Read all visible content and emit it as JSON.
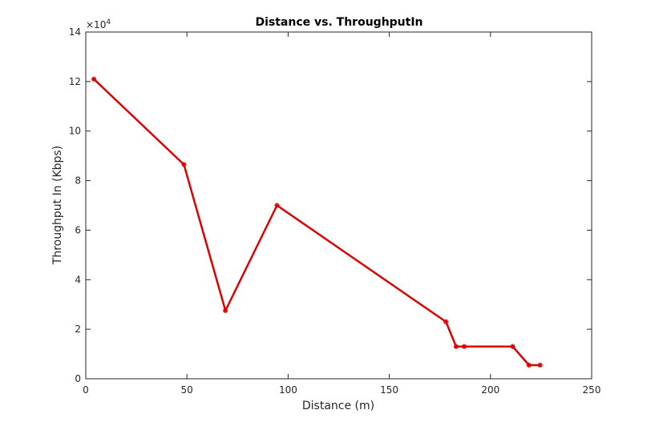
{
  "chart_data": {
    "type": "line",
    "title": "Distance vs. ThroughputIn",
    "xlabel": "Distance (m)",
    "ylabel": "Throughput In (Kbps)",
    "xlim": [
      0,
      250
    ],
    "ylim": [
      0,
      140000
    ],
    "xticks": [
      0,
      50,
      100,
      150,
      200,
      250
    ],
    "xtick_labels": [
      "0",
      "50",
      "100",
      "150",
      "200",
      "250"
    ],
    "yticks": [
      0,
      20000,
      40000,
      60000,
      80000,
      100000,
      120000,
      140000
    ],
    "ytick_labels": [
      "0",
      "2",
      "4",
      "6",
      "8",
      "10",
      "12",
      "14"
    ],
    "y_exponent_base": "×10",
    "y_exponent_power": "4",
    "grid": false,
    "series": [
      {
        "name": "ThroughputIn",
        "color": "#dd0000",
        "marker": "asterisk",
        "x": [
          4,
          48.5,
          69,
          94.5,
          178,
          183,
          187,
          211,
          219,
          224.5
        ],
        "y": [
          121000,
          86500,
          27500,
          70000,
          23000,
          13000,
          13000,
          13000,
          5500,
          5500
        ]
      }
    ]
  }
}
